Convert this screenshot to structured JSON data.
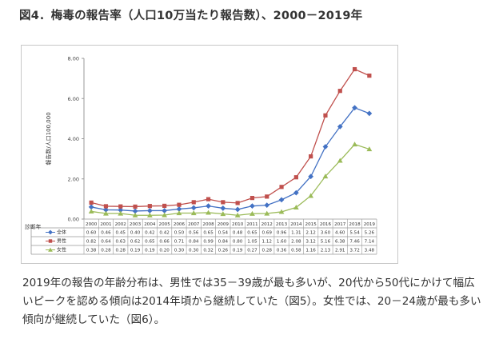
{
  "page": {
    "title": "図4．梅毒の報告率（人口10万当たり報告数）、2000－2019年",
    "paragraph": "2019年の報告の年齢分布は、男性では35－39歳が最も多いが、20代から50代にかけて幅広いピークを認める傾向は2014年頃から継続していた（図5）。女性では、20－24歳が最も多い傾向が継続していた（図6）。"
  },
  "chart_data": {
    "type": "line",
    "title": "",
    "ylabel": "報告数/人口100,000",
    "xlabel": "診断年",
    "ylim": [
      0,
      8
    ],
    "yticks": [
      "0.00",
      "2.00",
      "4.00",
      "6.00",
      "8.00"
    ],
    "categories": [
      "2000",
      "2001",
      "2002",
      "2003",
      "2004",
      "2005",
      "2006",
      "2007",
      "2008",
      "2009",
      "2010",
      "2011",
      "2012",
      "2013",
      "2014",
      "2015",
      "2016",
      "2017",
      "2018",
      "2019"
    ],
    "series": [
      {
        "name": "全体",
        "color": "#4472c4",
        "marker": "diamond",
        "values": [
          0.6,
          0.46,
          0.45,
          0.4,
          0.42,
          0.42,
          0.5,
          0.56,
          0.65,
          0.54,
          0.48,
          0.65,
          0.69,
          0.96,
          1.31,
          2.12,
          3.6,
          4.6,
          5.54,
          5.26
        ],
        "labels": [
          "0.60",
          "0.46",
          "0.45",
          "0.40",
          "0.42",
          "0.42",
          "0.50",
          "0.56",
          "0.65",
          "0.54",
          "0.48",
          "0.65",
          "0.69",
          "0.96",
          "1.31",
          "2.12",
          "3.60",
          "4.60",
          "5.54",
          "5.26"
        ]
      },
      {
        "name": "男性",
        "color": "#c0504d",
        "marker": "square",
        "values": [
          0.82,
          0.64,
          0.63,
          0.62,
          0.65,
          0.66,
          0.71,
          0.84,
          0.99,
          0.84,
          0.8,
          1.05,
          1.12,
          1.6,
          2.08,
          3.12,
          5.16,
          6.38,
          7.46,
          7.14
        ],
        "labels": [
          "0.82",
          "0.64",
          "0.63",
          "0.62",
          "0.65",
          "0.66",
          "0.71",
          "0.84",
          "0.99",
          "0.84",
          "0.80",
          "1.05",
          "1.12",
          "1.60",
          "2.08",
          "3.12",
          "5.16",
          "6.38",
          "7.46",
          "7.14"
        ]
      },
      {
        "name": "女性",
        "color": "#9bbb59",
        "marker": "triangle",
        "values": [
          0.38,
          0.28,
          0.28,
          0.19,
          0.19,
          0.2,
          0.3,
          0.3,
          0.32,
          0.26,
          0.19,
          0.27,
          0.28,
          0.36,
          0.58,
          1.16,
          2.13,
          2.91,
          3.72,
          3.48
        ],
        "labels": [
          "0.38",
          "0.28",
          "0.28",
          "0.19",
          "0.19",
          "0.20",
          "0.30",
          "0.30",
          "0.32",
          "0.26",
          "0.19",
          "0.27",
          "0.28",
          "0.36",
          "0.58",
          "1.16",
          "2.13",
          "2.91",
          "3.72",
          "3.48"
        ]
      }
    ]
  }
}
